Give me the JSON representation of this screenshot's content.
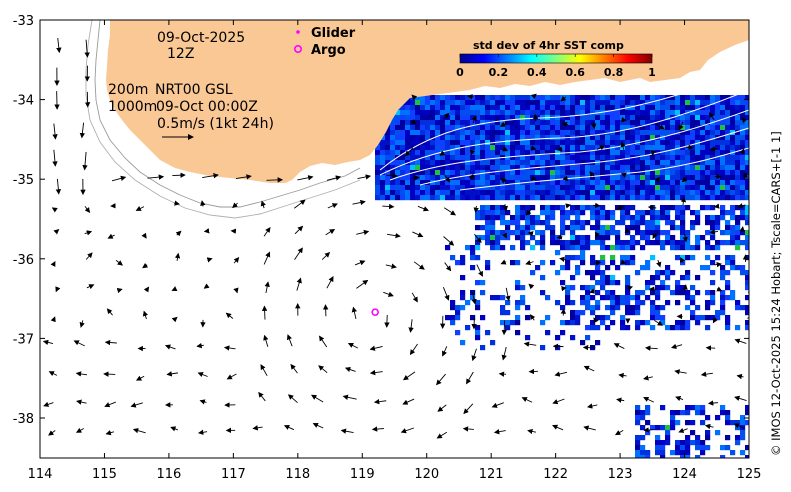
{
  "map": {
    "date_line": "09-Oct-2025",
    "hour_line": "12Z",
    "depth_line_1": "200m",
    "depth_line_2": "1000m",
    "product_line": "NRT00 GSL",
    "product_time": "09-Oct 00:00Z",
    "scale_label": "0.5m/s (1kt 24h)",
    "credit": "© IMOS 12-Oct-2025 15:24 Hobart; Tscale=CARS+[-1 1]",
    "land_color": "#fac895",
    "x_axis": {
      "ticks": [
        "114",
        "115",
        "116",
        "117",
        "118",
        "119",
        "120",
        "121",
        "122",
        "123",
        "124",
        "125"
      ]
    },
    "y_axis": {
      "ticks": [
        "-33",
        "-34",
        "-35",
        "-36",
        "-37",
        "-38"
      ]
    }
  },
  "legend": {
    "glider_label": "Glider",
    "argo_label": "Argo",
    "glider_color": "#ff00ff",
    "argo_color": "#ff00ff"
  },
  "colorbar": {
    "title": "std dev of 4hr SST comp",
    "ticks": [
      "0",
      "0.2",
      "0.4",
      "0.6",
      "0.8",
      "1"
    ],
    "colormap": "jet"
  },
  "observations": {
    "argo_float": {
      "lon": 119.2,
      "lat": -36.67
    }
  }
}
